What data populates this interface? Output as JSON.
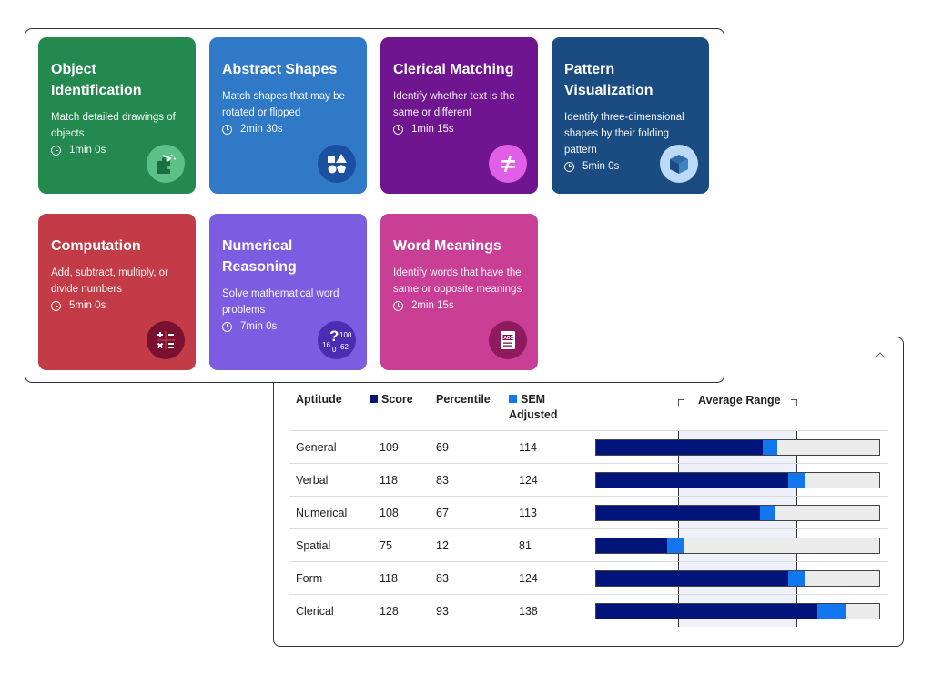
{
  "tests": [
    {
      "title": "Object Identification",
      "description": "Match detailed drawings of objects",
      "time": "1min 0s",
      "color": "#23894f",
      "icon": "puzzle-pieces-icon"
    },
    {
      "title": "Abstract Shapes",
      "description": "Match shapes that may be rotated or flipped",
      "time": "2min 30s",
      "color": "#3079c7",
      "icon": "shapes-icon"
    },
    {
      "title": "Clerical Matching",
      "description": "Identify whether text is the same or different",
      "time": "1min 15s",
      "color": "#6f1590",
      "icon": "not-equal-icon"
    },
    {
      "title": "Pattern Visualization",
      "description": "Identify three-dimensional shapes by their folding pattern",
      "time": "5min 0s",
      "color": "#1a4c82",
      "icon": "cube-icon"
    },
    {
      "title": "Computation",
      "description": "Add, subtract, multiply, or divide numbers",
      "time": "5min 0s",
      "color": "#c23b46",
      "icon": "math-operators-icon"
    },
    {
      "title": "Numerical Reasoning",
      "description": "Solve mathematical word problems",
      "time": "7min 0s",
      "color": "#7c5ce0",
      "icon": "number-question-icon"
    },
    {
      "title": "Word Meanings",
      "description": "Identify words that have the same or opposite meanings",
      "time": "2min 15s",
      "color": "#ca3f96",
      "icon": "abc-book-icon"
    }
  ],
  "results": {
    "headers": {
      "aptitude": "Aptitude",
      "score": "Score",
      "percentile": "Percentile",
      "sem_line1": "SEM",
      "sem_line2": "Adjusted",
      "average_range": "Average Range"
    },
    "colors": {
      "score": "#00147a",
      "sem": "#1277ee",
      "average_band": "#eef1fa",
      "bar_bg": "#ececec"
    },
    "rows": [
      {
        "aptitude": "General",
        "score": "109",
        "percentile": "69",
        "sem_adjusted": "114",
        "score_fraction": 0.59,
        "sem_fraction": 0.64
      },
      {
        "aptitude": "Verbal",
        "score": "118",
        "percentile": "83",
        "sem_adjusted": "124",
        "score_fraction": 0.68,
        "sem_fraction": 0.74
      },
      {
        "aptitude": "Numerical",
        "score": "108",
        "percentile": "67",
        "sem_adjusted": "113",
        "score_fraction": 0.58,
        "sem_fraction": 0.63
      },
      {
        "aptitude": "Spatial",
        "score": "75",
        "percentile": "12",
        "sem_adjusted": "81",
        "score_fraction": 0.25,
        "sem_fraction": 0.31
      },
      {
        "aptitude": "Form",
        "score": "118",
        "percentile": "83",
        "sem_adjusted": "124",
        "score_fraction": 0.68,
        "sem_fraction": 0.74
      },
      {
        "aptitude": "Clerical",
        "score": "128",
        "percentile": "93",
        "sem_adjusted": "138",
        "score_fraction": 0.78,
        "sem_fraction": 0.88
      }
    ],
    "average_range_fraction": [
      0.29,
      0.71
    ]
  }
}
